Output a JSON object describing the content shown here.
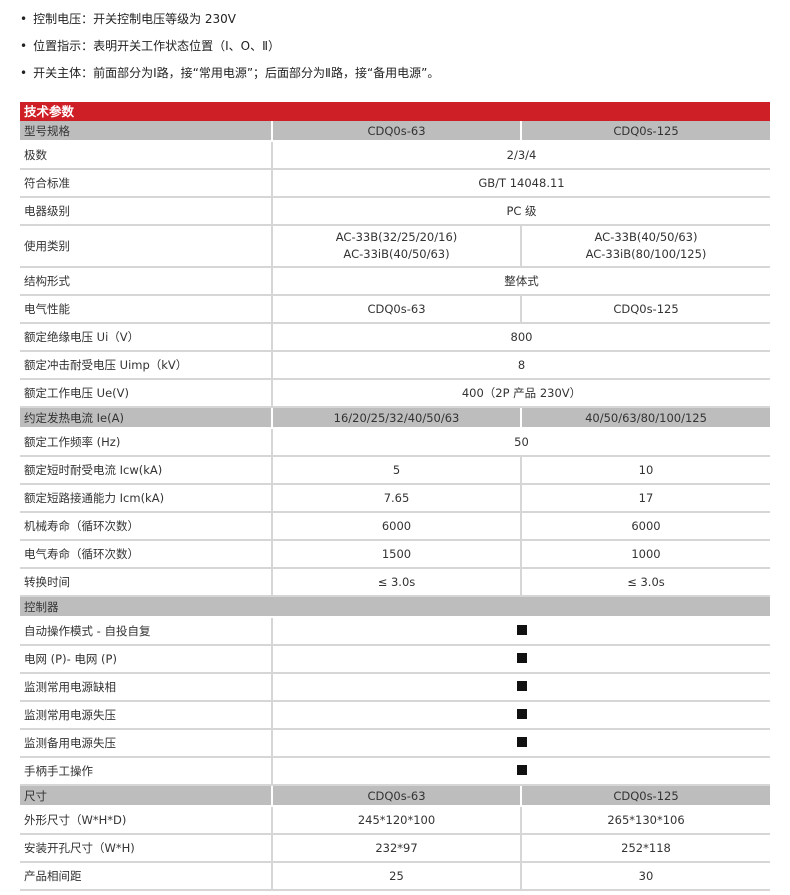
{
  "bullets": [
    "控制电压：开关控制电压等级为 230V",
    "位置指示：表明开关工作状态位置（Ⅰ、O、Ⅱ）",
    "开关主体：前面部分为Ⅰ路，接“常用电源”；后面部分为Ⅱ路，接“备用电源”。"
  ],
  "table": {
    "title": "技术参数",
    "rows": [
      {
        "type": "header",
        "label": "型号规格",
        "a": "CDQ0s-63",
        "b": "CDQ0s-125"
      },
      {
        "label": "极数",
        "span": "2/3/4"
      },
      {
        "label": "符合标准",
        "span": "GB/T 14048.11"
      },
      {
        "label": "电器级别",
        "span": "PC 级"
      },
      {
        "label": "使用类别",
        "a": "AC-33B(32/25/20/16)",
        "a2": "AC-33iB(40/50/63)",
        "b": "AC-33B(40/50/63)",
        "b2": "AC-33iB(80/100/125)"
      },
      {
        "label": "结构形式",
        "span": "整体式"
      },
      {
        "label": "电气性能",
        "a": "CDQ0s-63",
        "b": "CDQ0s-125"
      },
      {
        "label": "额定绝缘电压 Ui（V）",
        "span": "800"
      },
      {
        "label": "额定冲击耐受电压 Uimp（kV）",
        "span": "8"
      },
      {
        "label": "额定工作电压 Ue(V)",
        "span": "400（2P 产品 230V）"
      },
      {
        "type": "header",
        "label": "约定发热电流 Ie(A)",
        "a": "16/20/25/32/40/50/63",
        "b": "40/50/63/80/100/125"
      },
      {
        "label": "额定工作频率 (Hz)",
        "span": "50"
      },
      {
        "label": "额定短时耐受电流 Icw(kA)",
        "a": "5",
        "b": "10"
      },
      {
        "label": "额定短路接通能力 Icm(kA)",
        "a": "7.65",
        "b": "17"
      },
      {
        "label": "机械寿命（循环次数）",
        "a": "6000",
        "b": "6000"
      },
      {
        "label": "电气寿命（循环次数）",
        "a": "1500",
        "b": "1000"
      },
      {
        "label": "转换时间",
        "a": "≤ 3.0s",
        "b": "≤ 3.0s"
      },
      {
        "type": "section",
        "label": "控制器"
      },
      {
        "label": "自动操作模式 - 自投自复",
        "mark": true
      },
      {
        "label": "电网 (P)- 电网 (P)",
        "mark": true
      },
      {
        "label": "监测常用电源缺相",
        "mark": true
      },
      {
        "label": "监测常用电源失压",
        "mark": true
      },
      {
        "label": "监测备用电源失压",
        "mark": true
      },
      {
        "label": "手柄手工操作",
        "mark": true
      },
      {
        "type": "header",
        "label": "尺寸",
        "a": "CDQ0s-63",
        "b": "CDQ0s-125"
      },
      {
        "label": "外形尺寸（W*H*D)",
        "a": "245*120*100",
        "b": "265*130*106"
      },
      {
        "label": "安装开孔尺寸（W*H)",
        "a": "232*97",
        "b": "252*118"
      },
      {
        "label": "产品相间距",
        "a": "25",
        "b": "30"
      }
    ]
  },
  "colors": {
    "title_bg": "#cf1f26",
    "header_bg": "#bdbdbd"
  }
}
